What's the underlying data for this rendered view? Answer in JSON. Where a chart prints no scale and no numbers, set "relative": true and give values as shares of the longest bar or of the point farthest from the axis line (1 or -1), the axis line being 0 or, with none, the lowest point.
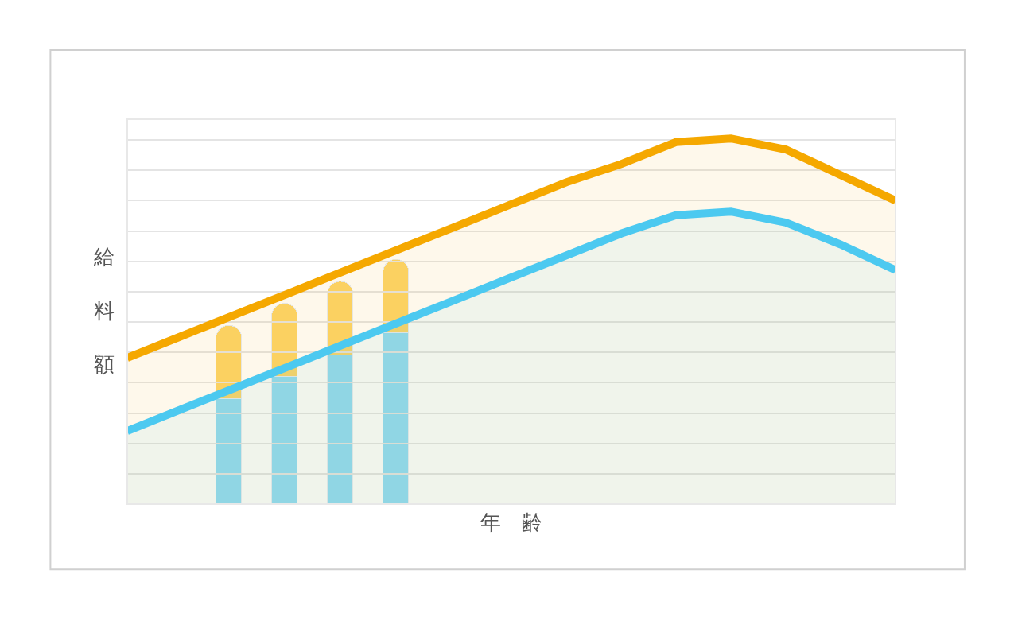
{
  "chart_data": [
    {
      "type": "area",
      "relative": true,
      "xlabel": "年齢",
      "ylabel": "給料額",
      "grid": "y",
      "categories": [
        null,
        null,
        null,
        null,
        null,
        null,
        null,
        null,
        null,
        null,
        null,
        null,
        null,
        null,
        null
      ],
      "series": [
        {
          "color": "#f5a800",
          "values": [
            0.4,
            0.46,
            0.52,
            0.58,
            0.64,
            0.7,
            0.76,
            0.82,
            0.88,
            0.93,
            0.99,
            1.0,
            0.97,
            0.9,
            0.83
          ]
        },
        {
          "color": "#4cc9f0",
          "values": [
            0.2,
            0.26,
            0.32,
            0.38,
            0.44,
            0.5,
            0.56,
            0.62,
            0.68,
            0.74,
            0.79,
            0.8,
            0.77,
            0.71,
            0.64
          ]
        }
      ]
    },
    {
      "type": "bar",
      "relative": true,
      "stacked": true,
      "categories": [
        null,
        null,
        null,
        null
      ],
      "series": [
        {
          "color": "#8fdcf7",
          "values": [
            0.43,
            0.52,
            0.61,
            0.7
          ]
        },
        {
          "color": "#fcd56a",
          "values": [
            0.3,
            0.3,
            0.3,
            0.3
          ]
        }
      ]
    }
  ]
}
